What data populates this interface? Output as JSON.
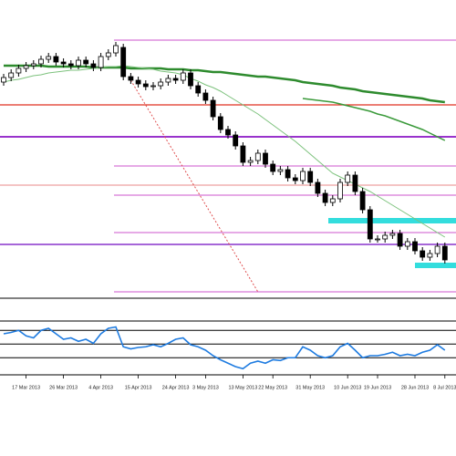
{
  "chart_data": [
    {
      "type": "candlestick",
      "categories": [
        null,
        null,
        null,
        "17 Mar 2013",
        null,
        null,
        null,
        null,
        "26 Mar 2013",
        null,
        null,
        null,
        null,
        "4 Apr 2013",
        null,
        null,
        null,
        null,
        "15 Apr 2013",
        null,
        null,
        null,
        null,
        "24 Apr 2013",
        null,
        null,
        null,
        "3 May 2013",
        null,
        null,
        null,
        null,
        "13 May 2013",
        null,
        null,
        null,
        "22 May 2013",
        null,
        null,
        null,
        null,
        "31 May 2013",
        null,
        null,
        null,
        null,
        "10 Jun 2013",
        null,
        null,
        null,
        "19 Jun 2013",
        null,
        null,
        null,
        null,
        "28 Jun 2013",
        null,
        null,
        null,
        "8 Jul 2013"
      ],
      "open": [
        240,
        245,
        250,
        255,
        258,
        260,
        265,
        268,
        262,
        260,
        258,
        264,
        260,
        256,
        268,
        272,
        278,
        246,
        242,
        238,
        235,
        236,
        240,
        244,
        242,
        250,
        236,
        228,
        220,
        202,
        188,
        182,
        170,
        152,
        154,
        162,
        150,
        142,
        144,
        135,
        132,
        142,
        130,
        118,
        108,
        112,
        130,
        138,
        120,
        100,
        68,
        68,
        72,
        74,
        60,
        65,
        55,
        48,
        52,
        60
      ],
      "high": [
        249,
        254,
        259,
        262,
        264,
        269,
        272,
        272,
        266,
        264,
        268,
        268,
        264,
        272,
        276,
        284,
        282,
        250,
        246,
        242,
        240,
        244,
        248,
        248,
        254,
        254,
        240,
        232,
        224,
        206,
        192,
        186,
        174,
        158,
        166,
        166,
        154,
        148,
        148,
        139,
        146,
        146,
        134,
        122,
        116,
        134,
        142,
        142,
        124,
        104,
        72,
        76,
        78,
        78,
        69,
        69,
        59,
        56,
        64,
        64
      ],
      "low": [
        236,
        241,
        246,
        251,
        254,
        256,
        261,
        258,
        256,
        254,
        254,
        256,
        252,
        252,
        264,
        268,
        242,
        238,
        234,
        231,
        231,
        232,
        236,
        238,
        238,
        232,
        224,
        216,
        198,
        184,
        178,
        166,
        148,
        148,
        150,
        146,
        138,
        138,
        131,
        128,
        128,
        126,
        114,
        104,
        104,
        108,
        126,
        116,
        96,
        64,
        64,
        64,
        68,
        56,
        56,
        51,
        44,
        44,
        48,
        41
      ],
      "close": [
        245,
        250,
        255,
        258,
        260,
        265,
        268,
        262,
        260,
        258,
        264,
        260,
        256,
        268,
        272,
        280,
        246,
        242,
        238,
        235,
        236,
        240,
        244,
        242,
        250,
        236,
        228,
        220,
        202,
        188,
        182,
        170,
        152,
        154,
        162,
        150,
        142,
        144,
        135,
        132,
        142,
        130,
        118,
        108,
        112,
        130,
        138,
        120,
        100,
        68,
        68,
        72,
        74,
        60,
        65,
        55,
        48,
        52,
        60,
        45
      ],
      "ylim": [
        0,
        290
      ],
      "up_color": "#ffffff",
      "down_color": "#000000",
      "overlays": [
        {
          "color": "#2e8b2e",
          "width": 2.5,
          "values": [
            258,
            258,
            258,
            258,
            258,
            258,
            257,
            257,
            257,
            257,
            257,
            257,
            256,
            256,
            256,
            256,
            256,
            255,
            255,
            255,
            255,
            255,
            254,
            254,
            254,
            253,
            253,
            252,
            251,
            251,
            250,
            249,
            248,
            247,
            246,
            246,
            245,
            244,
            243,
            242,
            240,
            239,
            238,
            237,
            236,
            234,
            233,
            232,
            230,
            229,
            228,
            227,
            226,
            225,
            224,
            223,
            222,
            220,
            219,
            218
          ]
        },
        {
          "color": "#3a9a3a",
          "width": 1.5,
          "values": [
            null,
            null,
            null,
            null,
            null,
            null,
            null,
            null,
            null,
            null,
            null,
            null,
            null,
            null,
            null,
            null,
            null,
            null,
            null,
            null,
            null,
            null,
            null,
            null,
            null,
            null,
            null,
            null,
            null,
            null,
            null,
            null,
            null,
            null,
            null,
            null,
            null,
            null,
            null,
            null,
            222,
            221,
            220,
            219,
            218,
            216,
            214,
            212,
            210,
            208,
            205,
            203,
            200,
            197,
            194,
            191,
            188,
            184,
            180,
            176
          ]
        },
        {
          "color": "#7dc27d",
          "width": 1,
          "values": [
            240,
            242,
            243,
            245,
            247,
            248,
            250,
            251,
            252,
            253,
            253,
            254,
            255,
            256,
            257,
            257,
            258,
            257,
            256,
            255,
            254,
            252,
            251,
            250,
            248,
            244,
            241,
            237,
            234,
            230,
            225,
            220,
            215,
            210,
            205,
            199,
            193,
            187,
            181,
            175,
            168,
            161,
            154,
            147,
            140,
            136,
            132,
            128,
            124,
            120,
            115,
            110,
            105,
            100,
            95,
            90,
            85,
            80,
            75,
            70
          ]
        }
      ],
      "levels": [
        {
          "value": 215,
          "color": "#e03020",
          "width": 1.2
        },
        {
          "value": 180,
          "color": "#9933cc",
          "width": 2
        },
        {
          "value": 127,
          "color": "#e06060",
          "width": 0.8
        },
        {
          "value": 62,
          "color": "#8833cc",
          "width": 1.5
        }
      ],
      "fib_levels": [
        {
          "value": 286,
          "color": "#cc55cc",
          "width": 1
        },
        {
          "value": 148,
          "color": "#cc55cc",
          "width": 1
        },
        {
          "value": 116,
          "color": "#cc55cc",
          "width": 1
        },
        {
          "value": 75,
          "color": "#cc55cc",
          "width": 1
        },
        {
          "value": 10,
          "color": "#cc55cc",
          "width": 1
        }
      ],
      "zones": [
        {
          "value": 88,
          "color": "#33dddd"
        },
        {
          "value": 39,
          "color": "#33dddd"
        }
      ],
      "trend_line": {
        "from": {
          "index": 17,
          "value": 242
        },
        "to": {
          "index": 34,
          "value": 10
        },
        "color": "#e05050"
      }
    },
    {
      "type": "line",
      "values": [
        65,
        67,
        70,
        62,
        59,
        70,
        73,
        65,
        57,
        59,
        54,
        57,
        51,
        65,
        73,
        75,
        46,
        43,
        45,
        46,
        49,
        46,
        51,
        57,
        59,
        49,
        46,
        41,
        33,
        27,
        22,
        17,
        14,
        22,
        25,
        22,
        27,
        26,
        30,
        30,
        46,
        41,
        33,
        30,
        33,
        46,
        51,
        41,
        30,
        33,
        33,
        35,
        38,
        33,
        35,
        33,
        38,
        41,
        49,
        41
      ],
      "color": "#1e7be0",
      "ylim": [
        5,
        85
      ],
      "levels": [
        30,
        50,
        70
      ]
    }
  ]
}
